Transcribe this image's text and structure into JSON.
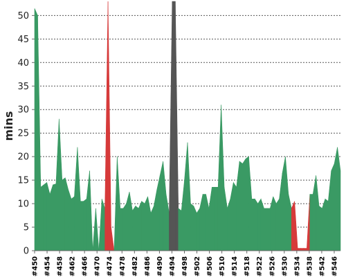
{
  "chart_data": {
    "type": "area",
    "title": "",
    "xlabel": "",
    "ylabel": "mins",
    "ylim": [
      0,
      53
    ],
    "yticks": [
      0,
      5,
      10,
      15,
      20,
      25,
      30,
      35,
      40,
      45,
      50
    ],
    "grid": true,
    "x_labels": [
      "#450",
      "#454",
      "#458",
      "#462",
      "#466",
      "#470",
      "#474",
      "#478",
      "#482",
      "#486",
      "#490",
      "#494",
      "#498",
      "#502",
      "#506",
      "#510",
      "#514",
      "#518",
      "#522",
      "#526",
      "#530",
      "#534",
      "#538",
      "#542",
      "#546"
    ],
    "x_start": 450,
    "x_end": 548,
    "colors": {
      "normal": "#3a9a64",
      "failed": "#d63a3a",
      "running": "#555555"
    },
    "values": [
      51.5,
      50,
      13.5,
      14,
      14.5,
      12,
      14,
      14.2,
      28,
      15,
      15.5,
      13,
      11,
      11.5,
      22,
      10.5,
      10.5,
      11,
      17,
      0,
      9,
      0,
      11,
      9,
      53,
      5,
      0,
      20,
      9,
      9,
      10,
      12.5,
      8.5,
      9.5,
      9,
      10.5,
      10,
      11.5,
      8,
      9.5,
      13,
      16,
      19,
      12,
      8,
      53,
      53,
      9,
      8.5,
      15,
      23,
      10,
      9.5,
      8,
      9,
      12,
      12,
      9,
      13.5,
      13.5,
      13.5,
      31,
      13.5,
      9,
      11,
      14.5,
      13.5,
      19,
      18.5,
      19.5,
      20,
      11,
      11,
      10,
      11,
      9,
      9,
      9,
      11.5,
      10,
      11,
      16.5,
      20,
      12,
      9,
      10.5,
      0.5,
      0.5,
      0.5,
      0.5,
      12,
      12,
      16,
      9.5,
      9,
      11,
      10.5,
      17,
      18.5,
      22,
      17
    ],
    "states": [
      "ok",
      "ok",
      "ok",
      "ok",
      "ok",
      "ok",
      "ok",
      "ok",
      "ok",
      "ok",
      "ok",
      "ok",
      "ok",
      "ok",
      "ok",
      "ok",
      "ok",
      "ok",
      "ok",
      "ok",
      "ok",
      "ok",
      "ok",
      "ok",
      "failed",
      "failed",
      "ok",
      "ok",
      "ok",
      "ok",
      "ok",
      "ok",
      "ok",
      "ok",
      "ok",
      "ok",
      "ok",
      "ok",
      "ok",
      "ok",
      "ok",
      "ok",
      "ok",
      "ok",
      "ok",
      "running",
      "running",
      "ok",
      "ok",
      "ok",
      "ok",
      "ok",
      "ok",
      "ok",
      "ok",
      "ok",
      "ok",
      "ok",
      "ok",
      "ok",
      "ok",
      "ok",
      "ok",
      "ok",
      "ok",
      "ok",
      "ok",
      "ok",
      "ok",
      "ok",
      "ok",
      "ok",
      "ok",
      "ok",
      "ok",
      "ok",
      "ok",
      "ok",
      "ok",
      "ok",
      "ok",
      "ok",
      "ok",
      "ok",
      "ok",
      "failed",
      "failed",
      "failed",
      "failed",
      "failed",
      "ok",
      "ok",
      "ok",
      "ok",
      "ok",
      "ok",
      "ok",
      "ok",
      "ok",
      "ok",
      "ok"
    ]
  }
}
